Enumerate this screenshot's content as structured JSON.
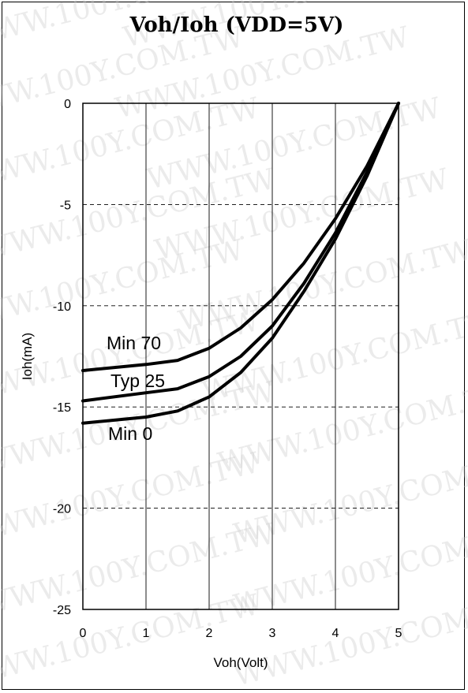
{
  "chart_data": {
    "type": "line",
    "title": "Voh/Ioh (VDD=5V)",
    "xlabel": "Voh(Volt)",
    "ylabel": "Ioh(mA)",
    "xlim": [
      0,
      5
    ],
    "ylim": [
      -25,
      0
    ],
    "xticks": [
      "0",
      "1",
      "2",
      "3",
      "4",
      "5"
    ],
    "yticks": [
      "0",
      "-5",
      "-10",
      "-15",
      "-20",
      "-25"
    ],
    "vertical_grid": "solid",
    "horizontal_grid": "dashed",
    "line_color": "#000000",
    "watermark": "WWW.100Y.COM.TW",
    "series": [
      {
        "name": "Min 70",
        "x": [
          0,
          1,
          1.5,
          2,
          2.5,
          3,
          3.5,
          4,
          4.5,
          5
        ],
        "y": [
          -13.2,
          -12.9,
          -12.7,
          -12.1,
          -11.1,
          -9.7,
          -7.9,
          -5.7,
          -3.1,
          0
        ]
      },
      {
        "name": "Typ 25",
        "x": [
          0,
          1,
          1.5,
          2,
          2.5,
          3,
          3.5,
          4,
          4.5,
          5
        ],
        "y": [
          -14.7,
          -14.3,
          -14.1,
          -13.5,
          -12.5,
          -11.0,
          -8.9,
          -6.4,
          -3.4,
          0
        ]
      },
      {
        "name": "Min 0",
        "x": [
          0,
          1,
          1.5,
          2,
          2.5,
          3,
          3.5,
          4,
          4.5,
          5
        ],
        "y": [
          -15.8,
          -15.5,
          -15.2,
          -14.5,
          -13.3,
          -11.6,
          -9.3,
          -6.7,
          -3.6,
          0
        ]
      }
    ]
  }
}
